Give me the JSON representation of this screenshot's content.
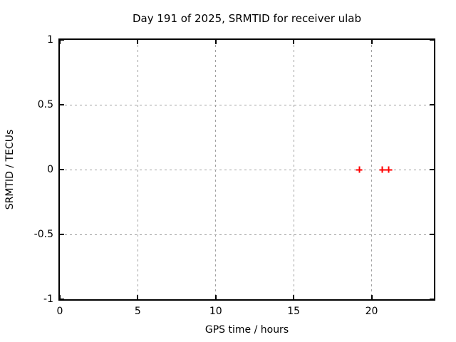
{
  "colors": {
    "background": "#ffffff",
    "border": "#000000",
    "grid": "#a0a0a0",
    "text": "#000000",
    "marker": "#ff0000"
  },
  "chart_data": {
    "type": "scatter",
    "title": "Day 191 of 2025, SRMTID for receiver ulab",
    "xlabel": "GPS time / hours",
    "ylabel": "SRMTID / TECUs",
    "xlim": [
      0,
      24
    ],
    "ylim": [
      -1,
      1
    ],
    "xticks": [
      0,
      5,
      10,
      15,
      20
    ],
    "yticks": [
      -1,
      -0.5,
      0,
      0.5,
      1
    ],
    "grid": true,
    "grid_style": "dashed",
    "legend": "none",
    "series": [
      {
        "name": "SRMTID",
        "marker": "plus",
        "color": "#ff0000",
        "x": [
          19.2,
          20.7,
          21.1
        ],
        "y": [
          0,
          0,
          0
        ]
      }
    ]
  }
}
